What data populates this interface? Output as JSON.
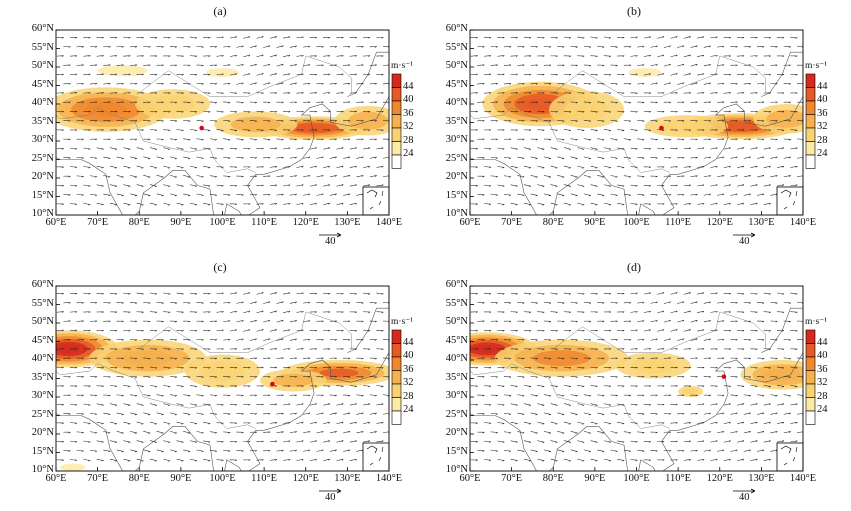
{
  "panels": [
    {
      "label": "(a)",
      "marker": [
        95,
        33.5
      ],
      "jets": [
        {
          "cx": 72,
          "cy": 38.5,
          "rx": 15,
          "ry": 6,
          "v": 38
        },
        {
          "cx": 88,
          "cy": 40,
          "rx": 9,
          "ry": 4,
          "v": 30
        },
        {
          "cx": 122,
          "cy": 33.5,
          "rx": 13,
          "ry": 3.2,
          "v": 43
        },
        {
          "cx": 108,
          "cy": 34.5,
          "rx": 10,
          "ry": 3.5,
          "v": 32
        },
        {
          "cx": 135,
          "cy": 35.5,
          "rx": 8,
          "ry": 4,
          "v": 33
        },
        {
          "cx": 76,
          "cy": 49,
          "rx": 6,
          "ry": 1.5,
          "v": 26
        },
        {
          "cx": 100,
          "cy": 48.5,
          "rx": 4,
          "ry": 1.2,
          "v": 25
        }
      ]
    },
    {
      "label": "(b)",
      "marker": [
        106,
        33.5
      ],
      "jets": [
        {
          "cx": 77,
          "cy": 40,
          "rx": 14,
          "ry": 6,
          "v": 42
        },
        {
          "cx": 88,
          "cy": 38.5,
          "rx": 9,
          "ry": 5,
          "v": 31
        },
        {
          "cx": 125,
          "cy": 34,
          "rx": 14,
          "ry": 3.5,
          "v": 43
        },
        {
          "cx": 112,
          "cy": 34,
          "rx": 10,
          "ry": 3,
          "v": 31
        },
        {
          "cx": 136,
          "cy": 36,
          "rx": 8,
          "ry": 4,
          "v": 33
        },
        {
          "cx": 102,
          "cy": 48.5,
          "rx": 4,
          "ry": 1.2,
          "v": 25
        }
      ]
    },
    {
      "label": "(c)",
      "marker": [
        112,
        33.5
      ],
      "jets": [
        {
          "cx": 63,
          "cy": 43,
          "rx": 12,
          "ry": 5,
          "v": 46
        },
        {
          "cx": 82,
          "cy": 40.5,
          "rx": 14,
          "ry": 5,
          "v": 34
        },
        {
          "cx": 100,
          "cy": 37,
          "rx": 9,
          "ry": 4.5,
          "v": 31
        },
        {
          "cx": 128,
          "cy": 36.5,
          "rx": 14,
          "ry": 3.5,
          "v": 40
        },
        {
          "cx": 117,
          "cy": 34.5,
          "rx": 8,
          "ry": 3,
          "v": 33
        },
        {
          "cx": 64,
          "cy": 11,
          "rx": 3,
          "ry": 1,
          "v": 26
        }
      ]
    },
    {
      "label": "(d)",
      "marker": [
        121,
        35.5
      ],
      "jets": [
        {
          "cx": 64,
          "cy": 43,
          "rx": 12,
          "ry": 4.5,
          "v": 46
        },
        {
          "cx": 82,
          "cy": 40.5,
          "rx": 16,
          "ry": 5,
          "v": 36
        },
        {
          "cx": 104,
          "cy": 38.5,
          "rx": 9,
          "ry": 3.5,
          "v": 30
        },
        {
          "cx": 113,
          "cy": 31.5,
          "rx": 3,
          "ry": 1.5,
          "v": 30
        },
        {
          "cx": 135,
          "cy": 36,
          "rx": 10,
          "ry": 4,
          "v": 34
        }
      ]
    }
  ],
  "lat_labels": [
    "60°N",
    "55°N",
    "50°N",
    "45°N",
    "40°N",
    "35°N",
    "30°N",
    "25°N",
    "20°N",
    "15°N",
    "10°N"
  ],
  "lon_labels": [
    "60°E",
    "70°E",
    "80°E",
    "90°E",
    "100°E",
    "110°E",
    "120°E",
    "130°E",
    "140°E"
  ],
  "colorbar": {
    "unit": "m·s⁻¹",
    "labels": [
      "44",
      "40",
      "36",
      "32",
      "28",
      "24"
    ],
    "colors": [
      "#d42b1e",
      "#e65a27",
      "#f0882e",
      "#f6b04d",
      "#f9d272",
      "#fbeba6",
      "#ffffff"
    ]
  },
  "reference_vector": "40",
  "domain": {
    "lon_min": 60,
    "lon_max": 140,
    "lat_min": 10,
    "lat_max": 60
  }
}
